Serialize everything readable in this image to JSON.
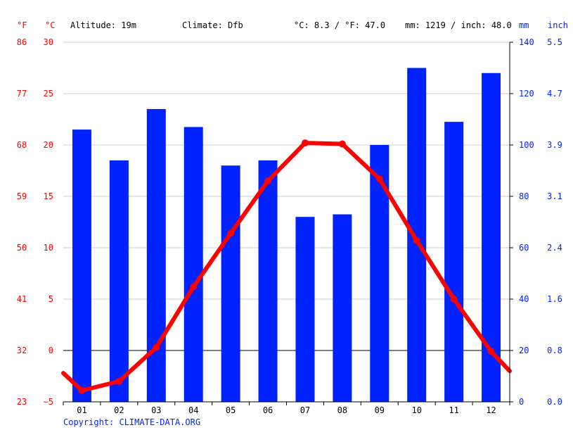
{
  "header": {
    "unit_f": "°F",
    "unit_c": "°C",
    "altitude": "Altitude: 19m",
    "climate": "Climate: Dfb",
    "temp_avg": "°C: 8.3 / °F: 47.0",
    "precip_total": "mm: 1219 / inch: 48.0",
    "unit_mm": "mm",
    "unit_inch": "inch"
  },
  "copyright": "Copyright: CLIMATE-DATA.ORG",
  "colors": {
    "temp": "#ff0000",
    "precip": "#0022ff",
    "grid": "#cccccc",
    "zero": "#000000",
    "axis_right": "#0022ff",
    "axis_left": "#ff0000"
  },
  "chart_data": {
    "type": "bar",
    "categories": [
      "01",
      "02",
      "03",
      "04",
      "05",
      "06",
      "07",
      "08",
      "09",
      "10",
      "11",
      "12"
    ],
    "series": [
      {
        "kind": "bar",
        "axis": "mm",
        "values": [
          106,
          94,
          114,
          107,
          92,
          94,
          72,
          73,
          100,
          130,
          109,
          128
        ]
      },
      {
        "kind": "line",
        "axis": "celsius",
        "values": [
          -3.9,
          -3.0,
          0.3,
          6.2,
          11.4,
          16.5,
          20.2,
          20.1,
          16.7,
          10.7,
          5.0,
          -0.1
        ]
      }
    ],
    "overflow_line": {
      "start": -2.2,
      "end": -2.0
    },
    "axes": {
      "celsius": {
        "ticks": [
          "30",
          "25",
          "20",
          "15",
          "10",
          "5",
          "0",
          "−5"
        ],
        "range": [
          -5,
          30
        ]
      },
      "fahrenheit": {
        "ticks": [
          "86",
          "77",
          "68",
          "59",
          "50",
          "41",
          "32",
          "23"
        ]
      },
      "mm": {
        "ticks": [
          "140",
          "120",
          "100",
          "80",
          "60",
          "40",
          "20",
          "0"
        ],
        "range": [
          0,
          140
        ]
      },
      "inch": {
        "ticks": [
          "5.5",
          "4.7",
          "3.9",
          "3.1",
          "2.4",
          "1.6",
          "0.8",
          "0.0"
        ]
      }
    },
    "grid": true
  }
}
